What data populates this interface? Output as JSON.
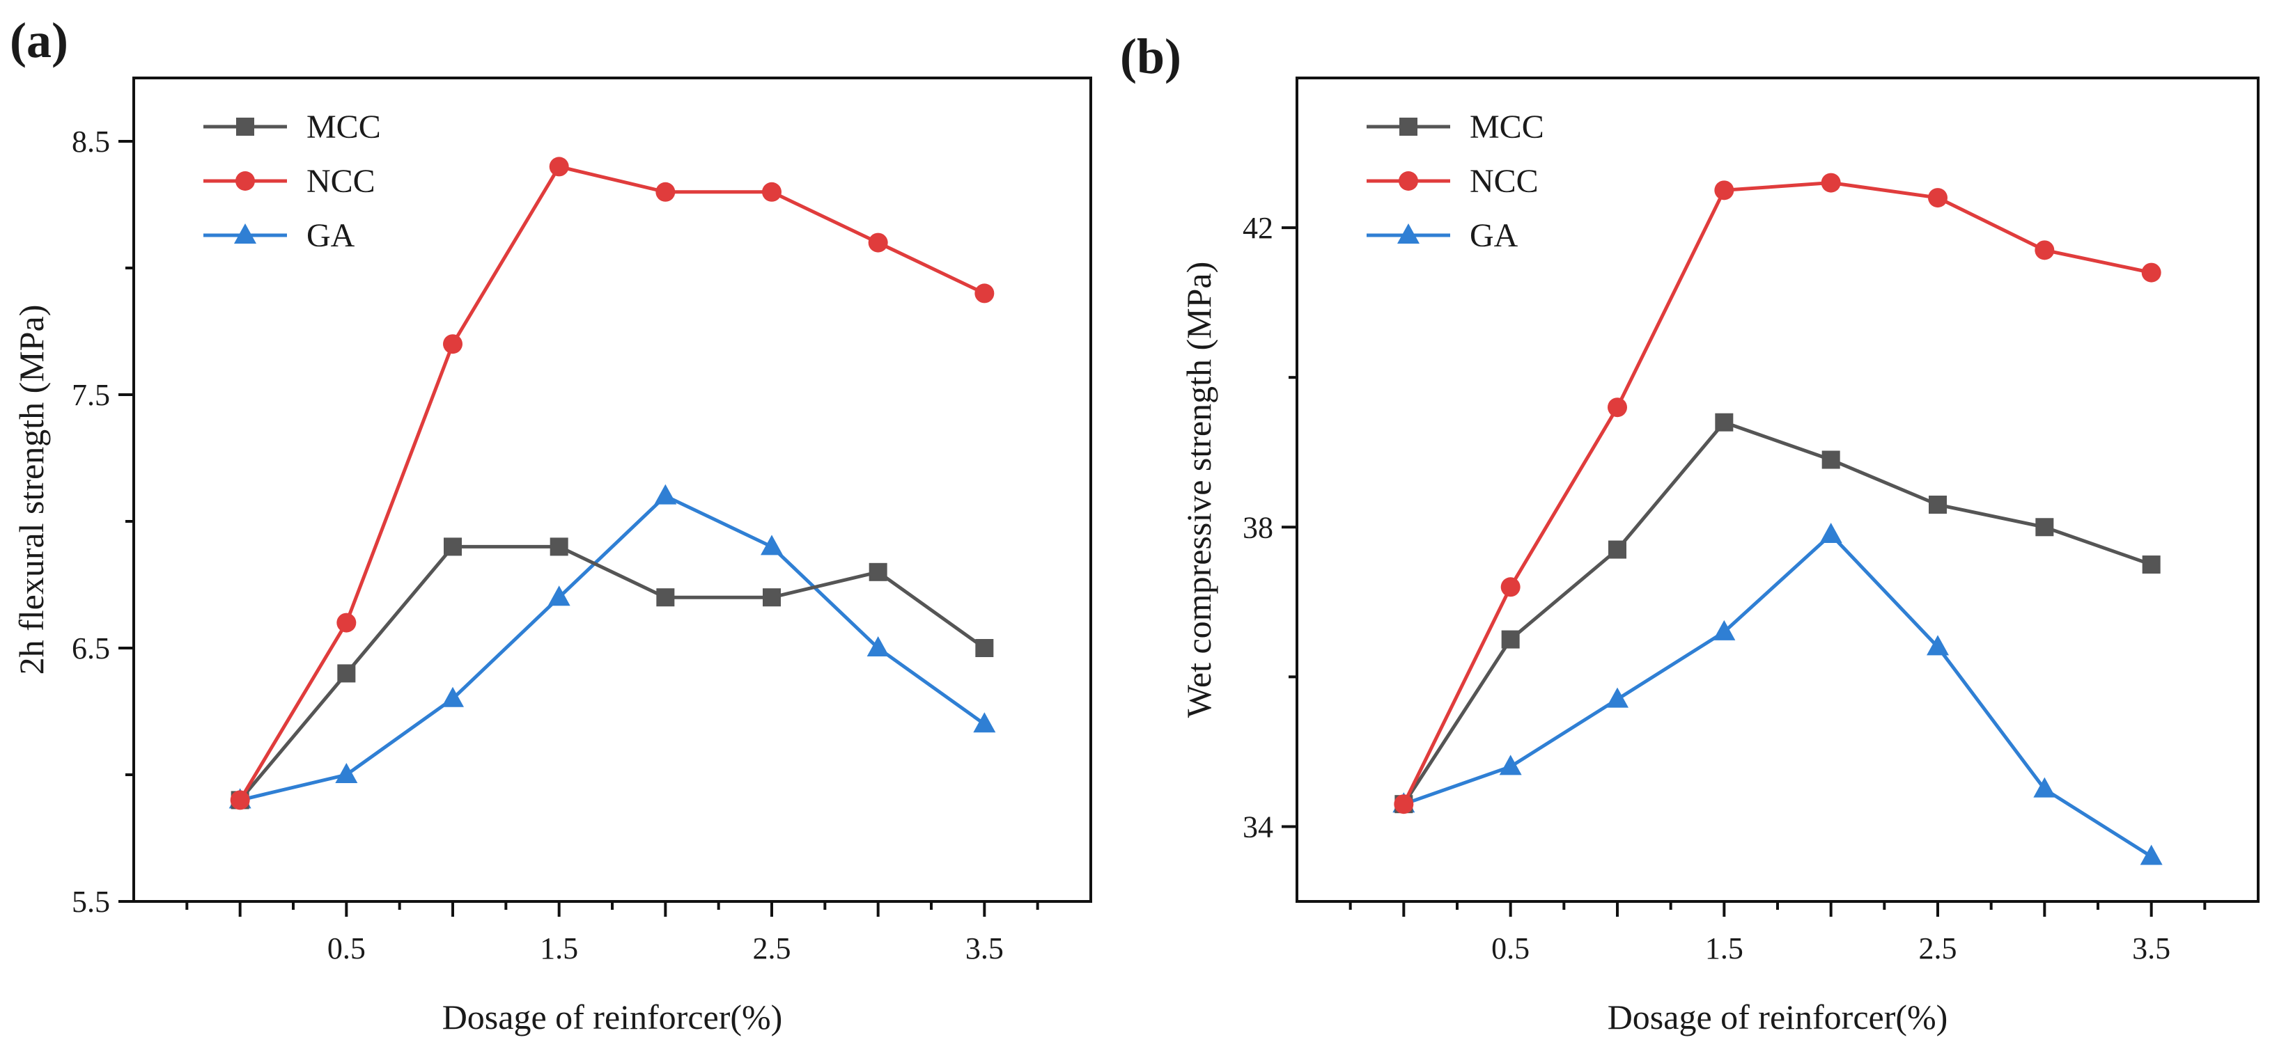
{
  "chart_data": [
    {
      "type": "line",
      "panel_label": "(a)",
      "xlabel": "Dosage of reinforcer(%)",
      "ylabel": "2h flexural strength (MPa)",
      "xlim": [
        -0.5,
        4.0
      ],
      "ylim": [
        5.5,
        8.75
      ],
      "x_ticks": [
        0,
        0.5,
        1.0,
        1.5,
        2.0,
        2.5,
        3.0,
        3.5
      ],
      "x_tick_labels": [
        "",
        "0.5",
        "",
        "1.5",
        "",
        "2.5",
        "",
        "3.5"
      ],
      "y_ticks": [
        5.5,
        6.5,
        7.5,
        8.5
      ],
      "y_tick_labels": [
        "5.5",
        "6.5",
        "7.5",
        "8.5"
      ],
      "x": [
        0,
        0.5,
        1.0,
        1.5,
        2.0,
        2.5,
        3.0,
        3.5
      ],
      "legend_position": "top-left",
      "series": [
        {
          "name": "MCC",
          "color": "#555555",
          "marker": "square",
          "values": [
            5.9,
            6.4,
            6.9,
            6.9,
            6.7,
            6.7,
            6.8,
            6.5
          ]
        },
        {
          "name": "NCC",
          "color": "#e03c3c",
          "marker": "circle",
          "values": [
            5.9,
            6.6,
            7.7,
            8.4,
            8.3,
            8.3,
            8.1,
            7.9
          ]
        },
        {
          "name": "GA",
          "color": "#2f7fd4",
          "marker": "triangle",
          "values": [
            5.9,
            6.0,
            6.3,
            6.7,
            7.1,
            6.9,
            6.5,
            6.2
          ]
        }
      ]
    },
    {
      "type": "line",
      "panel_label": "(b)",
      "xlabel": "Dosage of reinforcer(%)",
      "ylabel": "Wet compressive strength (MPa)",
      "xlim": [
        -0.5,
        4.0
      ],
      "ylim": [
        33.0,
        44.0
      ],
      "x_ticks": [
        0,
        0.5,
        1.0,
        1.5,
        2.0,
        2.5,
        3.0,
        3.5
      ],
      "x_tick_labels": [
        "",
        "0.5",
        "",
        "1.5",
        "",
        "2.5",
        "",
        "3.5"
      ],
      "y_ticks": [
        34,
        38,
        42
      ],
      "y_tick_labels": [
        "34",
        "38",
        "42"
      ],
      "x": [
        0,
        0.5,
        1.0,
        1.5,
        2.0,
        2.5,
        3.0,
        3.5
      ],
      "legend_position": "top-left",
      "series": [
        {
          "name": "MCC",
          "color": "#555555",
          "marker": "square",
          "values": [
            34.3,
            36.5,
            37.7,
            39.4,
            38.9,
            38.3,
            38.0,
            37.5
          ]
        },
        {
          "name": "NCC",
          "color": "#e03c3c",
          "marker": "circle",
          "values": [
            34.3,
            37.2,
            39.6,
            42.5,
            42.6,
            42.4,
            41.7,
            41.4
          ]
        },
        {
          "name": "GA",
          "color": "#2f7fd4",
          "marker": "triangle",
          "values": [
            34.3,
            34.8,
            35.7,
            36.6,
            37.9,
            36.4,
            34.5,
            33.6
          ]
        }
      ]
    }
  ]
}
